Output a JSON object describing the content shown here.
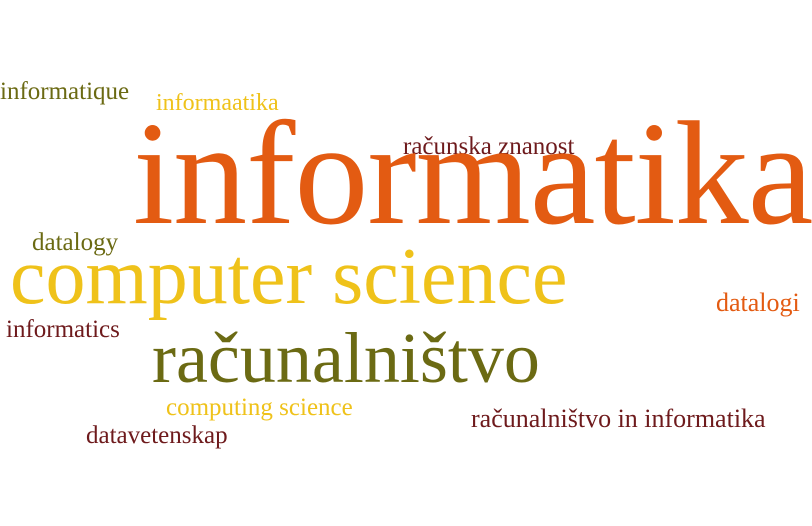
{
  "words": {
    "informatique": "informatique",
    "informaatika": "informaatika",
    "racunska_znanost": "računska znanost",
    "informatika": "informatika",
    "datalogy": "datalogy",
    "computer_science": "computer science",
    "datalogi": "datalogi",
    "informatics": "informatics",
    "racunalnistvo": "računalništvo",
    "computing_science": "computing science",
    "racunalnistvo_in_informatika": "računalništvo in informatika",
    "datavetenskap": "datavetenskap"
  },
  "colors": {
    "olive": "#6b6a13",
    "yellow": "#efc21a",
    "orange": "#e35b12",
    "maroon": "#6e1a1c",
    "background": "#ffffff"
  }
}
